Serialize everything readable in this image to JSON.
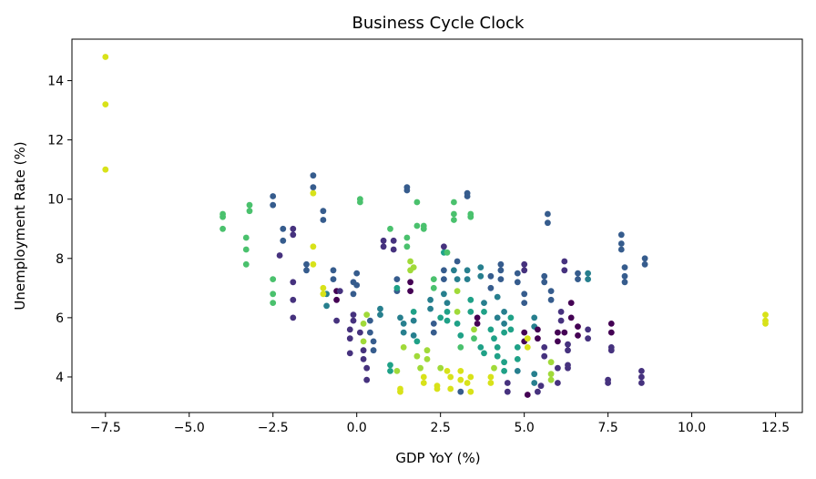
{
  "chart_data": {
    "type": "scatter",
    "title": "Business Cycle Clock",
    "xlabel": "GDP YoY (%)",
    "ylabel": "Unemployment Rate (%)",
    "xlim": [
      -8.5,
      13.3
    ],
    "ylim": [
      2.8,
      15.4
    ],
    "xticks": [
      -7.5,
      -5.0,
      -2.5,
      0.0,
      2.5,
      5.0,
      7.5,
      10.0,
      12.5
    ],
    "xtick_labels": [
      "−7.5",
      "−5.0",
      "−2.5",
      "0.0",
      "2.5",
      "5.0",
      "7.5",
      "10.0",
      "12.5"
    ],
    "yticks": [
      4,
      6,
      8,
      10,
      12,
      14
    ],
    "ytick_labels": [
      "4",
      "6",
      "8",
      "10",
      "12",
      "14"
    ],
    "grid": false,
    "legend": "none",
    "colormap": "viridis",
    "palette": [
      "#440154",
      "#46327e",
      "#365c8d",
      "#277f8e",
      "#1fa187",
      "#4ac16d",
      "#a0da39",
      "#d8e219"
    ],
    "points": [
      {
        "x": -7.5,
        "y": 14.8,
        "c": 7
      },
      {
        "x": -7.5,
        "y": 13.2,
        "c": 7
      },
      {
        "x": -7.5,
        "y": 11.0,
        "c": 7
      },
      {
        "x": -4.0,
        "y": 9.5,
        "c": 5
      },
      {
        "x": -4.0,
        "y": 9.4,
        "c": 5
      },
      {
        "x": -4.0,
        "y": 9.0,
        "c": 5
      },
      {
        "x": -3.2,
        "y": 9.8,
        "c": 5
      },
      {
        "x": -3.2,
        "y": 9.6,
        "c": 5
      },
      {
        "x": -3.3,
        "y": 8.7,
        "c": 5
      },
      {
        "x": -3.3,
        "y": 8.3,
        "c": 5
      },
      {
        "x": -3.3,
        "y": 7.8,
        "c": 5
      },
      {
        "x": -2.5,
        "y": 10.1,
        "c": 2
      },
      {
        "x": -2.5,
        "y": 9.8,
        "c": 2
      },
      {
        "x": -2.2,
        "y": 9.0,
        "c": 2
      },
      {
        "x": -2.2,
        "y": 8.6,
        "c": 2
      },
      {
        "x": -2.3,
        "y": 8.1,
        "c": 1
      },
      {
        "x": -2.5,
        "y": 7.3,
        "c": 5
      },
      {
        "x": -2.5,
        "y": 6.8,
        "c": 5
      },
      {
        "x": -2.5,
        "y": 6.5,
        "c": 5
      },
      {
        "x": -1.9,
        "y": 9.0,
        "c": 1
      },
      {
        "x": -1.9,
        "y": 8.8,
        "c": 1
      },
      {
        "x": -1.9,
        "y": 7.2,
        "c": 1
      },
      {
        "x": -1.9,
        "y": 6.6,
        "c": 1
      },
      {
        "x": -1.9,
        "y": 6.0,
        "c": 1
      },
      {
        "x": -1.5,
        "y": 7.8,
        "c": 2
      },
      {
        "x": -1.5,
        "y": 7.6,
        "c": 2
      },
      {
        "x": -1.3,
        "y": 10.8,
        "c": 2
      },
      {
        "x": -1.3,
        "y": 10.4,
        "c": 2
      },
      {
        "x": -1.3,
        "y": 10.2,
        "c": 7
      },
      {
        "x": -1.3,
        "y": 8.4,
        "c": 7
      },
      {
        "x": -1.3,
        "y": 7.8,
        "c": 7
      },
      {
        "x": -1.0,
        "y": 9.6,
        "c": 2
      },
      {
        "x": -1.0,
        "y": 9.3,
        "c": 2
      },
      {
        "x": -0.9,
        "y": 6.8,
        "c": 3
      },
      {
        "x": -0.9,
        "y": 6.4,
        "c": 3
      },
      {
        "x": -1.0,
        "y": 7.0,
        "c": 7
      },
      {
        "x": -1.0,
        "y": 6.8,
        "c": 7
      },
      {
        "x": -0.7,
        "y": 7.6,
        "c": 2
      },
      {
        "x": -0.7,
        "y": 7.3,
        "c": 2
      },
      {
        "x": -0.6,
        "y": 6.9,
        "c": 0
      },
      {
        "x": -0.6,
        "y": 6.6,
        "c": 0
      },
      {
        "x": -0.5,
        "y": 6.9,
        "c": 1
      },
      {
        "x": -0.6,
        "y": 5.9,
        "c": 1
      },
      {
        "x": -0.2,
        "y": 5.6,
        "c": 1
      },
      {
        "x": -0.2,
        "y": 5.3,
        "c": 1
      },
      {
        "x": -0.2,
        "y": 4.8,
        "c": 1
      },
      {
        "x": -0.1,
        "y": 7.2,
        "c": 2
      },
      {
        "x": -0.1,
        "y": 6.8,
        "c": 2
      },
      {
        "x": -0.1,
        "y": 6.1,
        "c": 1
      },
      {
        "x": -0.1,
        "y": 5.9,
        "c": 1
      },
      {
        "x": 0.0,
        "y": 7.5,
        "c": 2
      },
      {
        "x": 0.0,
        "y": 7.1,
        "c": 2
      },
      {
        "x": 0.1,
        "y": 10.0,
        "c": 5
      },
      {
        "x": 0.1,
        "y": 9.9,
        "c": 5
      },
      {
        "x": 0.1,
        "y": 5.5,
        "c": 1
      },
      {
        "x": 0.2,
        "y": 4.9,
        "c": 1
      },
      {
        "x": 0.2,
        "y": 4.6,
        "c": 1
      },
      {
        "x": 0.3,
        "y": 4.3,
        "c": 1
      },
      {
        "x": 0.3,
        "y": 3.9,
        "c": 1
      },
      {
        "x": 0.2,
        "y": 5.8,
        "c": 6
      },
      {
        "x": 0.3,
        "y": 6.1,
        "c": 6
      },
      {
        "x": 0.2,
        "y": 5.2,
        "c": 6
      },
      {
        "x": 0.4,
        "y": 5.9,
        "c": 2
      },
      {
        "x": 0.4,
        "y": 5.5,
        "c": 2
      },
      {
        "x": 0.5,
        "y": 5.2,
        "c": 2
      },
      {
        "x": 0.5,
        "y": 4.9,
        "c": 2
      },
      {
        "x": 0.7,
        "y": 6.3,
        "c": 3
      },
      {
        "x": 0.7,
        "y": 6.1,
        "c": 3
      },
      {
        "x": 0.8,
        "y": 8.6,
        "c": 1
      },
      {
        "x": 0.8,
        "y": 8.4,
        "c": 1
      },
      {
        "x": 1.0,
        "y": 9.0,
        "c": 5
      },
      {
        "x": 1.0,
        "y": 4.4,
        "c": 4
      },
      {
        "x": 1.0,
        "y": 4.2,
        "c": 4
      },
      {
        "x": 1.1,
        "y": 8.6,
        "c": 1
      },
      {
        "x": 1.1,
        "y": 8.3,
        "c": 1
      },
      {
        "x": 1.2,
        "y": 7.3,
        "c": 2
      },
      {
        "x": 1.2,
        "y": 6.9,
        "c": 2
      },
      {
        "x": 1.2,
        "y": 7.0,
        "c": 4
      },
      {
        "x": 1.2,
        "y": 4.2,
        "c": 6
      },
      {
        "x": 1.3,
        "y": 3.6,
        "c": 7
      },
      {
        "x": 1.3,
        "y": 3.5,
        "c": 7
      },
      {
        "x": 1.3,
        "y": 6.0,
        "c": 3
      },
      {
        "x": 1.4,
        "y": 5.8,
        "c": 3
      },
      {
        "x": 1.4,
        "y": 5.5,
        "c": 3
      },
      {
        "x": 1.4,
        "y": 5.0,
        "c": 6
      },
      {
        "x": 1.5,
        "y": 10.4,
        "c": 2
      },
      {
        "x": 1.5,
        "y": 10.3,
        "c": 2
      },
      {
        "x": 1.5,
        "y": 8.7,
        "c": 5
      },
      {
        "x": 1.5,
        "y": 8.4,
        "c": 5
      },
      {
        "x": 1.6,
        "y": 7.9,
        "c": 6
      },
      {
        "x": 1.6,
        "y": 7.6,
        "c": 6
      },
      {
        "x": 1.7,
        "y": 7.7,
        "c": 6
      },
      {
        "x": 1.6,
        "y": 7.2,
        "c": 0
      },
      {
        "x": 1.6,
        "y": 6.9,
        "c": 0
      },
      {
        "x": 1.7,
        "y": 6.2,
        "c": 4
      },
      {
        "x": 1.7,
        "y": 5.9,
        "c": 3
      },
      {
        "x": 1.7,
        "y": 5.4,
        "c": 3
      },
      {
        "x": 1.8,
        "y": 5.2,
        "c": 4
      },
      {
        "x": 1.8,
        "y": 9.9,
        "c": 5
      },
      {
        "x": 1.8,
        "y": 9.1,
        "c": 5
      },
      {
        "x": 2.0,
        "y": 9.1,
        "c": 5
      },
      {
        "x": 2.0,
        "y": 9.0,
        "c": 5
      },
      {
        "x": 1.8,
        "y": 4.7,
        "c": 6
      },
      {
        "x": 1.9,
        "y": 4.3,
        "c": 6
      },
      {
        "x": 2.0,
        "y": 4.0,
        "c": 7
      },
      {
        "x": 2.0,
        "y": 3.8,
        "c": 7
      },
      {
        "x": 2.1,
        "y": 4.9,
        "c": 6
      },
      {
        "x": 2.1,
        "y": 4.6,
        "c": 6
      },
      {
        "x": 2.2,
        "y": 6.6,
        "c": 3
      },
      {
        "x": 2.2,
        "y": 6.3,
        "c": 3
      },
      {
        "x": 2.3,
        "y": 7.3,
        "c": 5
      },
      {
        "x": 2.3,
        "y": 7.0,
        "c": 5
      },
      {
        "x": 2.3,
        "y": 5.8,
        "c": 2
      },
      {
        "x": 2.3,
        "y": 5.5,
        "c": 2
      },
      {
        "x": 2.4,
        "y": 3.7,
        "c": 7
      },
      {
        "x": 2.4,
        "y": 3.6,
        "c": 7
      },
      {
        "x": 2.5,
        "y": 6.0,
        "c": 4
      },
      {
        "x": 2.5,
        "y": 4.3,
        "c": 6
      },
      {
        "x": 2.6,
        "y": 8.4,
        "c": 1
      },
      {
        "x": 2.6,
        "y": 8.2,
        "c": 4
      },
      {
        "x": 2.7,
        "y": 8.2,
        "c": 5
      },
      {
        "x": 2.6,
        "y": 7.6,
        "c": 2
      },
      {
        "x": 2.6,
        "y": 7.3,
        "c": 2
      },
      {
        "x": 2.6,
        "y": 6.8,
        "c": 3
      },
      {
        "x": 2.7,
        "y": 6.5,
        "c": 3
      },
      {
        "x": 2.7,
        "y": 6.2,
        "c": 4
      },
      {
        "x": 2.7,
        "y": 5.9,
        "c": 4
      },
      {
        "x": 2.7,
        "y": 4.2,
        "c": 7
      },
      {
        "x": 2.8,
        "y": 4.0,
        "c": 7
      },
      {
        "x": 2.8,
        "y": 3.6,
        "c": 7
      },
      {
        "x": 2.9,
        "y": 9.9,
        "c": 5
      },
      {
        "x": 2.9,
        "y": 9.5,
        "c": 5
      },
      {
        "x": 2.9,
        "y": 9.3,
        "c": 5
      },
      {
        "x": 2.9,
        "y": 7.6,
        "c": 3
      },
      {
        "x": 3.0,
        "y": 7.9,
        "c": 2
      },
      {
        "x": 3.0,
        "y": 7.3,
        "c": 3
      },
      {
        "x": 3.0,
        "y": 6.9,
        "c": 6
      },
      {
        "x": 3.0,
        "y": 6.2,
        "c": 6
      },
      {
        "x": 3.0,
        "y": 5.8,
        "c": 4
      },
      {
        "x": 3.1,
        "y": 5.4,
        "c": 4
      },
      {
        "x": 3.1,
        "y": 5.0,
        "c": 5
      },
      {
        "x": 3.1,
        "y": 4.2,
        "c": 7
      },
      {
        "x": 3.1,
        "y": 3.9,
        "c": 7
      },
      {
        "x": 3.1,
        "y": 3.5,
        "c": 2
      },
      {
        "x": 3.3,
        "y": 10.2,
        "c": 2
      },
      {
        "x": 3.3,
        "y": 10.1,
        "c": 2
      },
      {
        "x": 3.4,
        "y": 9.5,
        "c": 5
      },
      {
        "x": 3.4,
        "y": 9.4,
        "c": 5
      },
      {
        "x": 3.3,
        "y": 7.6,
        "c": 3
      },
      {
        "x": 3.3,
        "y": 7.3,
        "c": 3
      },
      {
        "x": 3.4,
        "y": 6.6,
        "c": 4
      },
      {
        "x": 3.4,
        "y": 6.2,
        "c": 4
      },
      {
        "x": 3.3,
        "y": 3.8,
        "c": 7
      },
      {
        "x": 3.4,
        "y": 3.5,
        "c": 7
      },
      {
        "x": 3.4,
        "y": 4.0,
        "c": 7
      },
      {
        "x": 3.5,
        "y": 5.6,
        "c": 6
      },
      {
        "x": 3.5,
        "y": 5.3,
        "c": 5
      },
      {
        "x": 3.6,
        "y": 6.0,
        "c": 0
      },
      {
        "x": 3.6,
        "y": 5.8,
        "c": 0
      },
      {
        "x": 3.7,
        "y": 7.7,
        "c": 3
      },
      {
        "x": 3.7,
        "y": 7.4,
        "c": 3
      },
      {
        "x": 3.7,
        "y": 5.0,
        "c": 4
      },
      {
        "x": 3.8,
        "y": 4.8,
        "c": 4
      },
      {
        "x": 3.8,
        "y": 6.5,
        "c": 3
      },
      {
        "x": 3.8,
        "y": 6.2,
        "c": 4
      },
      {
        "x": 4.0,
        "y": 7.4,
        "c": 2
      },
      {
        "x": 4.0,
        "y": 7.0,
        "c": 2
      },
      {
        "x": 4.0,
        "y": 5.6,
        "c": 4
      },
      {
        "x": 4.1,
        "y": 5.3,
        "c": 4
      },
      {
        "x": 4.0,
        "y": 4.0,
        "c": 7
      },
      {
        "x": 4.0,
        "y": 3.8,
        "c": 7
      },
      {
        "x": 4.1,
        "y": 4.3,
        "c": 6
      },
      {
        "x": 4.2,
        "y": 6.7,
        "c": 3
      },
      {
        "x": 4.2,
        "y": 6.0,
        "c": 3
      },
      {
        "x": 4.2,
        "y": 5.0,
        "c": 4
      },
      {
        "x": 4.2,
        "y": 4.7,
        "c": 4
      },
      {
        "x": 4.3,
        "y": 7.8,
        "c": 2
      },
      {
        "x": 4.3,
        "y": 7.6,
        "c": 2
      },
      {
        "x": 4.3,
        "y": 7.3,
        "c": 2
      },
      {
        "x": 4.4,
        "y": 6.2,
        "c": 3
      },
      {
        "x": 4.4,
        "y": 5.8,
        "c": 3
      },
      {
        "x": 4.4,
        "y": 5.5,
        "c": 4
      },
      {
        "x": 4.4,
        "y": 4.5,
        "c": 4
      },
      {
        "x": 4.4,
        "y": 4.2,
        "c": 4
      },
      {
        "x": 4.5,
        "y": 3.8,
        "c": 1
      },
      {
        "x": 4.5,
        "y": 3.5,
        "c": 1
      },
      {
        "x": 4.6,
        "y": 6.0,
        "c": 4
      },
      {
        "x": 4.6,
        "y": 5.6,
        "c": 4
      },
      {
        "x": 4.8,
        "y": 7.5,
        "c": 2
      },
      {
        "x": 4.8,
        "y": 7.2,
        "c": 2
      },
      {
        "x": 4.8,
        "y": 5.0,
        "c": 4
      },
      {
        "x": 4.8,
        "y": 4.6,
        "c": 4
      },
      {
        "x": 4.8,
        "y": 4.2,
        "c": 3
      },
      {
        "x": 5.0,
        "y": 7.8,
        "c": 1
      },
      {
        "x": 5.0,
        "y": 7.6,
        "c": 1
      },
      {
        "x": 5.0,
        "y": 6.8,
        "c": 2
      },
      {
        "x": 5.0,
        "y": 6.5,
        "c": 2
      },
      {
        "x": 5.0,
        "y": 5.5,
        "c": 0
      },
      {
        "x": 5.0,
        "y": 5.2,
        "c": 0
      },
      {
        "x": 5.1,
        "y": 3.4,
        "c": 0
      },
      {
        "x": 5.1,
        "y": 5.3,
        "c": 7
      },
      {
        "x": 5.1,
        "y": 5.0,
        "c": 7
      },
      {
        "x": 5.3,
        "y": 6.0,
        "c": 3
      },
      {
        "x": 5.3,
        "y": 5.7,
        "c": 3
      },
      {
        "x": 5.3,
        "y": 4.1,
        "c": 3
      },
      {
        "x": 5.3,
        "y": 3.8,
        "c": 3
      },
      {
        "x": 5.4,
        "y": 5.6,
        "c": 0
      },
      {
        "x": 5.4,
        "y": 5.3,
        "c": 0
      },
      {
        "x": 5.4,
        "y": 3.5,
        "c": 1
      },
      {
        "x": 5.5,
        "y": 3.7,
        "c": 1
      },
      {
        "x": 5.6,
        "y": 7.4,
        "c": 2
      },
      {
        "x": 5.6,
        "y": 7.2,
        "c": 2
      },
      {
        "x": 5.6,
        "y": 5.0,
        "c": 1
      },
      {
        "x": 5.6,
        "y": 4.7,
        "c": 1
      },
      {
        "x": 5.7,
        "y": 9.5,
        "c": 2
      },
      {
        "x": 5.7,
        "y": 9.2,
        "c": 2
      },
      {
        "x": 5.8,
        "y": 6.9,
        "c": 2
      },
      {
        "x": 5.8,
        "y": 6.6,
        "c": 2
      },
      {
        "x": 5.8,
        "y": 4.5,
        "c": 6
      },
      {
        "x": 5.8,
        "y": 4.1,
        "c": 6
      },
      {
        "x": 5.8,
        "y": 3.9,
        "c": 6
      },
      {
        "x": 6.0,
        "y": 5.5,
        "c": 0
      },
      {
        "x": 6.0,
        "y": 5.2,
        "c": 0
      },
      {
        "x": 6.0,
        "y": 4.3,
        "c": 1
      },
      {
        "x": 6.0,
        "y": 3.8,
        "c": 1
      },
      {
        "x": 6.1,
        "y": 6.2,
        "c": 1
      },
      {
        "x": 6.1,
        "y": 5.9,
        "c": 1
      },
      {
        "x": 6.2,
        "y": 7.9,
        "c": 1
      },
      {
        "x": 6.2,
        "y": 7.6,
        "c": 1
      },
      {
        "x": 6.2,
        "y": 5.5,
        "c": 0
      },
      {
        "x": 6.3,
        "y": 5.1,
        "c": 1
      },
      {
        "x": 6.3,
        "y": 4.9,
        "c": 1
      },
      {
        "x": 6.3,
        "y": 4.4,
        "c": 1
      },
      {
        "x": 6.3,
        "y": 4.3,
        "c": 1
      },
      {
        "x": 6.4,
        "y": 6.5,
        "c": 0
      },
      {
        "x": 6.4,
        "y": 6.0,
        "c": 0
      },
      {
        "x": 6.6,
        "y": 7.5,
        "c": 2
      },
      {
        "x": 6.6,
        "y": 7.3,
        "c": 2
      },
      {
        "x": 6.6,
        "y": 5.7,
        "c": 0
      },
      {
        "x": 6.6,
        "y": 5.4,
        "c": 0
      },
      {
        "x": 6.9,
        "y": 7.5,
        "c": 3
      },
      {
        "x": 6.9,
        "y": 7.3,
        "c": 3
      },
      {
        "x": 6.9,
        "y": 5.6,
        "c": 1
      },
      {
        "x": 6.9,
        "y": 5.3,
        "c": 1
      },
      {
        "x": 7.6,
        "y": 5.8,
        "c": 0
      },
      {
        "x": 7.6,
        "y": 5.5,
        "c": 0
      },
      {
        "x": 7.6,
        "y": 5.0,
        "c": 1
      },
      {
        "x": 7.6,
        "y": 4.9,
        "c": 1
      },
      {
        "x": 7.5,
        "y": 3.9,
        "c": 1
      },
      {
        "x": 7.5,
        "y": 3.8,
        "c": 1
      },
      {
        "x": 7.9,
        "y": 8.8,
        "c": 2
      },
      {
        "x": 7.9,
        "y": 8.5,
        "c": 2
      },
      {
        "x": 7.9,
        "y": 8.3,
        "c": 2
      },
      {
        "x": 8.0,
        "y": 7.7,
        "c": 2
      },
      {
        "x": 8.0,
        "y": 7.4,
        "c": 2
      },
      {
        "x": 8.0,
        "y": 7.2,
        "c": 2
      },
      {
        "x": 8.5,
        "y": 4.2,
        "c": 1
      },
      {
        "x": 8.5,
        "y": 4.0,
        "c": 1
      },
      {
        "x": 8.5,
        "y": 3.8,
        "c": 1
      },
      {
        "x": 8.6,
        "y": 8.0,
        "c": 2
      },
      {
        "x": 8.6,
        "y": 7.8,
        "c": 2
      },
      {
        "x": 12.2,
        "y": 6.1,
        "c": 7
      },
      {
        "x": 12.2,
        "y": 5.9,
        "c": 7
      },
      {
        "x": 12.2,
        "y": 5.8,
        "c": 7
      }
    ]
  }
}
